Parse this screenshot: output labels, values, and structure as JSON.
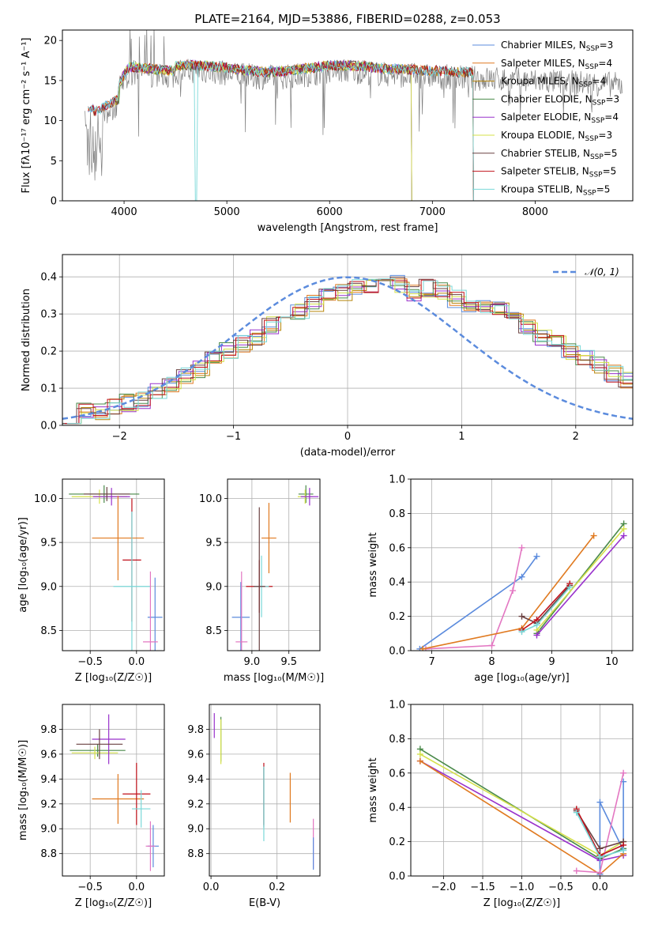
{
  "figure": {
    "title": "PLATE=2164, MJD=53886, FIBERID=0288, z=0.053"
  },
  "chart_data": [
    {
      "id": "spectrum",
      "type": "line",
      "xlabel": "wavelength [Angstrom, rest frame]",
      "ylabel": "Flux [fλ10⁻¹⁷ erg cm⁻² s⁻¹ A⁻¹]",
      "xlim": [
        3400,
        8950
      ],
      "ylim": [
        0,
        21.3
      ],
      "xticks": [
        4000,
        5000,
        6000,
        7000,
        8000
      ],
      "yticks": [
        0,
        5,
        10,
        15,
        20
      ],
      "legend_position": "upper-right",
      "observed": {
        "color": "#808080",
        "x_range": [
          3620,
          8850
        ]
      },
      "series": [
        {
          "name": "Chabrier MILES, N_SSP=3",
          "color": "#5b8bdd",
          "x_range": [
            3650,
            7400
          ]
        },
        {
          "name": "Salpeter MILES, N_SSP=4",
          "color": "#e07a20",
          "x_range": [
            3650,
            7400
          ]
        },
        {
          "name": "Kroupa MILES, N_SSP=4",
          "color": "#b8860b",
          "x_range": [
            3900,
            7400
          ]
        },
        {
          "name": "Chabrier ELODIE, N_SSP=3",
          "color": "#4a8a4a",
          "x_range": [
            3900,
            6800
          ]
        },
        {
          "name": "Salpeter ELODIE, N_SSP=4",
          "color": "#9932cc",
          "x_range": [
            3900,
            6800
          ]
        },
        {
          "name": "Kroupa ELODIE, N_SSP=3",
          "color": "#d4e04a",
          "x_range": [
            3900,
            6800
          ]
        },
        {
          "name": "Chabrier STELIB, N_SSP=5",
          "color": "#6a4040",
          "x_range": [
            3650,
            7400
          ]
        },
        {
          "name": "Salpeter STELIB, N_SSP=5",
          "color": "#c0101a",
          "x_range": [
            3650,
            7400
          ]
        },
        {
          "name": "Kroupa STELIB, N_SSP=5",
          "color": "#7ad8d8",
          "x_range": [
            3650,
            7400
          ]
        }
      ]
    },
    {
      "id": "residuals",
      "type": "histogram",
      "xlabel": "(data-model)/error",
      "ylabel": "Normed distribution",
      "xlim": [
        -2.5,
        2.5
      ],
      "ylim": [
        0,
        0.46
      ],
      "xticks": [
        -2,
        -1,
        0,
        1,
        2
      ],
      "yticks": [
        0.0,
        0.1,
        0.2,
        0.3,
        0.4
      ],
      "grid": true,
      "legend_position": "upper-right",
      "reference": {
        "name": "𝒩(0, 1)",
        "color": "#5b8bdd",
        "mean": 0,
        "sigma": 1
      },
      "bin_width": 0.125,
      "base_curve": [
        0.03,
        0.035,
        0.04,
        0.05,
        0.06,
        0.07,
        0.09,
        0.11,
        0.13,
        0.15,
        0.18,
        0.2,
        0.22,
        0.24,
        0.27,
        0.29,
        0.31,
        0.33,
        0.35,
        0.36,
        0.37,
        0.38,
        0.39,
        0.38,
        0.36,
        0.37,
        0.36,
        0.34,
        0.33,
        0.32,
        0.31,
        0.28,
        0.26,
        0.24,
        0.22,
        0.2,
        0.18,
        0.16,
        0.14,
        0.12,
        0.1,
        0.08,
        0.07,
        0.06,
        0.055,
        0.05,
        0.045,
        0.04
      ]
    },
    {
      "id": "age-vs-Z",
      "type": "errorbar",
      "xlabel": "Z [log₁₀(Z/Z☉)]",
      "ylabel": "age  [log₁₀(age/yr)]",
      "xlim": [
        -0.8,
        0.3
      ],
      "ylim": [
        8.27,
        10.22
      ],
      "xticks": [
        -0.5,
        0.0
      ],
      "yticks": [
        8.5,
        9.0,
        9.5,
        10.0
      ],
      "grid": true,
      "points": [
        {
          "color": "#4a8a4a",
          "x": -0.35,
          "xerr": 0.38,
          "y": 10.05,
          "yerr": 0.1
        },
        {
          "color": "#d4e04a",
          "x": -0.4,
          "xerr": 0.3,
          "y": 10.02,
          "yerr": 0.08
        },
        {
          "color": "#9932cc",
          "x": -0.27,
          "xerr": 0.2,
          "y": 10.02,
          "yerr": 0.1
        },
        {
          "color": "#6a4040",
          "x": -0.32,
          "xerr": 0.25,
          "y": 10.05,
          "yerr": 0.08
        },
        {
          "color": "#e07a20",
          "x": -0.2,
          "xerr": 0.28,
          "y": 9.55,
          "yerr": 0.48
        },
        {
          "color": "#c0101a",
          "x": -0.05,
          "xerr": 0.1,
          "y": 9.3,
          "yerr": 0.7
        },
        {
          "color": "#7ad8d8",
          "x": -0.05,
          "xerr": 0.2,
          "y": 9.0,
          "yerr": 0.85
        },
        {
          "color": "#5b8bdd",
          "x": 0.2,
          "xerr": 0.08,
          "y": 8.65,
          "yerr": 0.45
        },
        {
          "color": "#e377c2",
          "x": 0.15,
          "xerr": 0.08,
          "y": 8.37,
          "yerr": 0.8
        }
      ]
    },
    {
      "id": "age-vs-mass",
      "type": "errorbar",
      "xlabel": "mass [log₁₀(M/M☉)]",
      "xlim": [
        8.67,
        9.92
      ],
      "ylim": [
        8.27,
        10.22
      ],
      "xticks": [
        9.0,
        9.5
      ],
      "yticks": [
        8.5,
        9.0,
        9.5,
        10.0
      ],
      "grid": true,
      "points": [
        {
          "color": "#4a8a4a",
          "x": 9.73,
          "xerr": 0.1,
          "y": 10.05,
          "yerr": 0.1
        },
        {
          "color": "#d4e04a",
          "x": 9.72,
          "xerr": 0.1,
          "y": 10.02,
          "yerr": 0.08
        },
        {
          "color": "#9932cc",
          "x": 9.78,
          "xerr": 0.12,
          "y": 10.02,
          "yerr": 0.1
        },
        {
          "color": "#e07a20",
          "x": 9.23,
          "xerr": 0.1,
          "y": 9.55,
          "yerr": 0.4
        },
        {
          "color": "#c0101a",
          "x": 9.1,
          "xerr": 0.18,
          "y": 9.0,
          "yerr": 0.3
        },
        {
          "color": "#7ad8d8",
          "x": 9.13,
          "xerr": 0.1,
          "y": 9.0,
          "yerr": 0.35
        },
        {
          "color": "#6a4040",
          "x": 9.1,
          "xerr": 0.08,
          "y": 9.0,
          "yerr": 0.9
        },
        {
          "color": "#5b8bdd",
          "x": 8.85,
          "xerr": 0.12,
          "y": 8.65,
          "yerr": 0.4
        },
        {
          "color": "#e377c2",
          "x": 8.86,
          "xerr": 0.08,
          "y": 8.37,
          "yerr": 0.8
        }
      ]
    },
    {
      "id": "weight-vs-age",
      "type": "line",
      "xlabel": "age  [log₁₀(age/yr)]",
      "ylabel": "mass weight",
      "xlim": [
        6.65,
        10.35
      ],
      "ylim": [
        0,
        1.0
      ],
      "xticks": [
        7,
        8,
        9,
        10
      ],
      "yticks": [
        0.0,
        0.2,
        0.4,
        0.6,
        0.8,
        1.0
      ],
      "grid": true,
      "series": [
        {
          "color": "#5b8bdd",
          "x": [
            6.8,
            8.5,
            8.75
          ],
          "y": [
            0.01,
            0.43,
            0.55
          ]
        },
        {
          "color": "#e377c2",
          "x": [
            6.9,
            8.0,
            8.35,
            8.5
          ],
          "y": [
            0.01,
            0.03,
            0.35,
            0.6
          ]
        },
        {
          "color": "#e07a20",
          "x": [
            6.85,
            8.5,
            9.7
          ],
          "y": [
            0.01,
            0.13,
            0.67
          ]
        },
        {
          "color": "#4a8a4a",
          "x": [
            8.75,
            10.2
          ],
          "y": [
            0.1,
            0.74
          ]
        },
        {
          "color": "#d4e04a",
          "x": [
            8.75,
            10.2
          ],
          "y": [
            0.12,
            0.71
          ]
        },
        {
          "color": "#9932cc",
          "x": [
            8.75,
            10.2
          ],
          "y": [
            0.09,
            0.67
          ]
        },
        {
          "color": "#6a4040",
          "x": [
            8.5,
            8.75,
            9.3
          ],
          "y": [
            0.2,
            0.16,
            0.38
          ]
        },
        {
          "color": "#c0101a",
          "x": [
            8.5,
            8.75,
            9.3
          ],
          "y": [
            0.12,
            0.18,
            0.39
          ]
        },
        {
          "color": "#7ad8d8",
          "x": [
            8.5,
            8.75,
            9.3
          ],
          "y": [
            0.11,
            0.15,
            0.37
          ]
        }
      ]
    },
    {
      "id": "mass-vs-Z",
      "type": "errorbar",
      "xlabel": "Z [log₁₀(Z/Z☉)]",
      "ylabel": "mass [log₁₀(M/M☉)]",
      "xlim": [
        -0.8,
        0.3
      ],
      "ylim": [
        8.62,
        10.0
      ],
      "xticks": [
        -0.5,
        0.0
      ],
      "yticks": [
        8.8,
        9.0,
        9.2,
        9.4,
        9.6,
        9.8
      ],
      "grid": true,
      "points": [
        {
          "color": "#4a8a4a",
          "x": -0.42,
          "xerr": 0.3,
          "y": 9.63,
          "yerr": 0.05
        },
        {
          "color": "#d4e04a",
          "x": -0.45,
          "xerr": 0.25,
          "y": 9.61,
          "yerr": 0.05
        },
        {
          "color": "#9932cc",
          "x": -0.3,
          "xerr": 0.18,
          "y": 9.72,
          "yerr": 0.2
        },
        {
          "color": "#6a4040",
          "x": -0.4,
          "xerr": 0.25,
          "y": 9.68,
          "yerr": 0.12
        },
        {
          "color": "#e07a20",
          "x": -0.2,
          "xerr": 0.28,
          "y": 9.24,
          "yerr": 0.2
        },
        {
          "color": "#c0101a",
          "x": 0.0,
          "xerr": 0.15,
          "y": 9.28,
          "yerr": 0.25
        },
        {
          "color": "#7ad8d8",
          "x": 0.05,
          "xerr": 0.1,
          "y": 9.16,
          "yerr": 0.15
        },
        {
          "color": "#5b8bdd",
          "x": 0.18,
          "xerr": 0.06,
          "y": 8.86,
          "yerr": 0.17
        },
        {
          "color": "#e377c2",
          "x": 0.15,
          "xerr": 0.05,
          "y": 8.86,
          "yerr": 0.2
        }
      ]
    },
    {
      "id": "mass-vs-EBV",
      "type": "errorbar",
      "xlabel": "E(B-V)",
      "xlim": [
        -0.005,
        0.33
      ],
      "ylim": [
        8.62,
        10.0
      ],
      "xticks": [
        0.0,
        0.2
      ],
      "yticks": [
        8.8,
        9.0,
        9.2,
        9.4,
        9.6,
        9.8
      ],
      "grid": true,
      "points": [
        {
          "color": "#9932cc",
          "x": 0.01,
          "y": 9.83,
          "yerr": 0.1
        },
        {
          "color": "#4a8a4a",
          "x": 0.03,
          "y": 9.72,
          "yerr": 0.18
        },
        {
          "color": "#d4e04a",
          "x": 0.03,
          "y": 9.7,
          "yerr": 0.18
        },
        {
          "color": "#c0101a",
          "x": 0.16,
          "y": 9.28,
          "yerr": 0.25
        },
        {
          "color": "#6a4040",
          "x": 0.16,
          "y": 9.25,
          "yerr": 0.24
        },
        {
          "color": "#7ad8d8",
          "x": 0.16,
          "y": 9.2,
          "yerr": 0.3
        },
        {
          "color": "#e07a20",
          "x": 0.24,
          "y": 9.25,
          "yerr": 0.2
        },
        {
          "color": "#e377c2",
          "x": 0.31,
          "y": 8.88,
          "yerr": 0.2
        },
        {
          "color": "#5b8bdd",
          "x": 0.31,
          "y": 8.8,
          "yerr": 0.13
        }
      ]
    },
    {
      "id": "weight-vs-Z",
      "type": "line",
      "xlabel": "Z [log₁₀(Z/Z☉)]",
      "ylabel": "mass weight",
      "xlim": [
        -2.42,
        0.42
      ],
      "ylim": [
        0,
        1.0
      ],
      "xticks": [
        -2.0,
        -1.5,
        -1.0,
        -0.5,
        0.0
      ],
      "yticks": [
        0.0,
        0.2,
        0.4,
        0.6,
        0.8,
        1.0
      ],
      "grid": true,
      "series": [
        {
          "color": "#4a8a4a",
          "x": [
            -2.3,
            0.0,
            0.3
          ],
          "y": [
            0.74,
            0.1,
            0.16
          ]
        },
        {
          "color": "#d4e04a",
          "x": [
            -2.3,
            0.0,
            0.3
          ],
          "y": [
            0.71,
            0.12,
            0.2
          ]
        },
        {
          "color": "#9932cc",
          "x": [
            -2.3,
            0.0,
            0.3
          ],
          "y": [
            0.67,
            0.09,
            0.12
          ]
        },
        {
          "color": "#e07a20",
          "x": [
            -2.3,
            0.0,
            0.3
          ],
          "y": [
            0.67,
            0.01,
            0.13
          ]
        },
        {
          "color": "#5b8bdd",
          "x": [
            0.0,
            0.0,
            0.3,
            0.3
          ],
          "y": [
            0.01,
            0.43,
            0.15,
            0.55
          ]
        },
        {
          "color": "#e377c2",
          "x": [
            -0.3,
            0.0,
            0.3
          ],
          "y": [
            0.03,
            0.02,
            0.6
          ]
        },
        {
          "color": "#6a4040",
          "x": [
            -0.3,
            0.0,
            0.3
          ],
          "y": [
            0.38,
            0.16,
            0.2
          ]
        },
        {
          "color": "#c0101a",
          "x": [
            -0.3,
            0.0,
            0.3
          ],
          "y": [
            0.39,
            0.12,
            0.18
          ]
        },
        {
          "color": "#7ad8d8",
          "x": [
            -0.3,
            0.0,
            0.3
          ],
          "y": [
            0.37,
            0.11,
            0.15
          ]
        }
      ]
    }
  ]
}
